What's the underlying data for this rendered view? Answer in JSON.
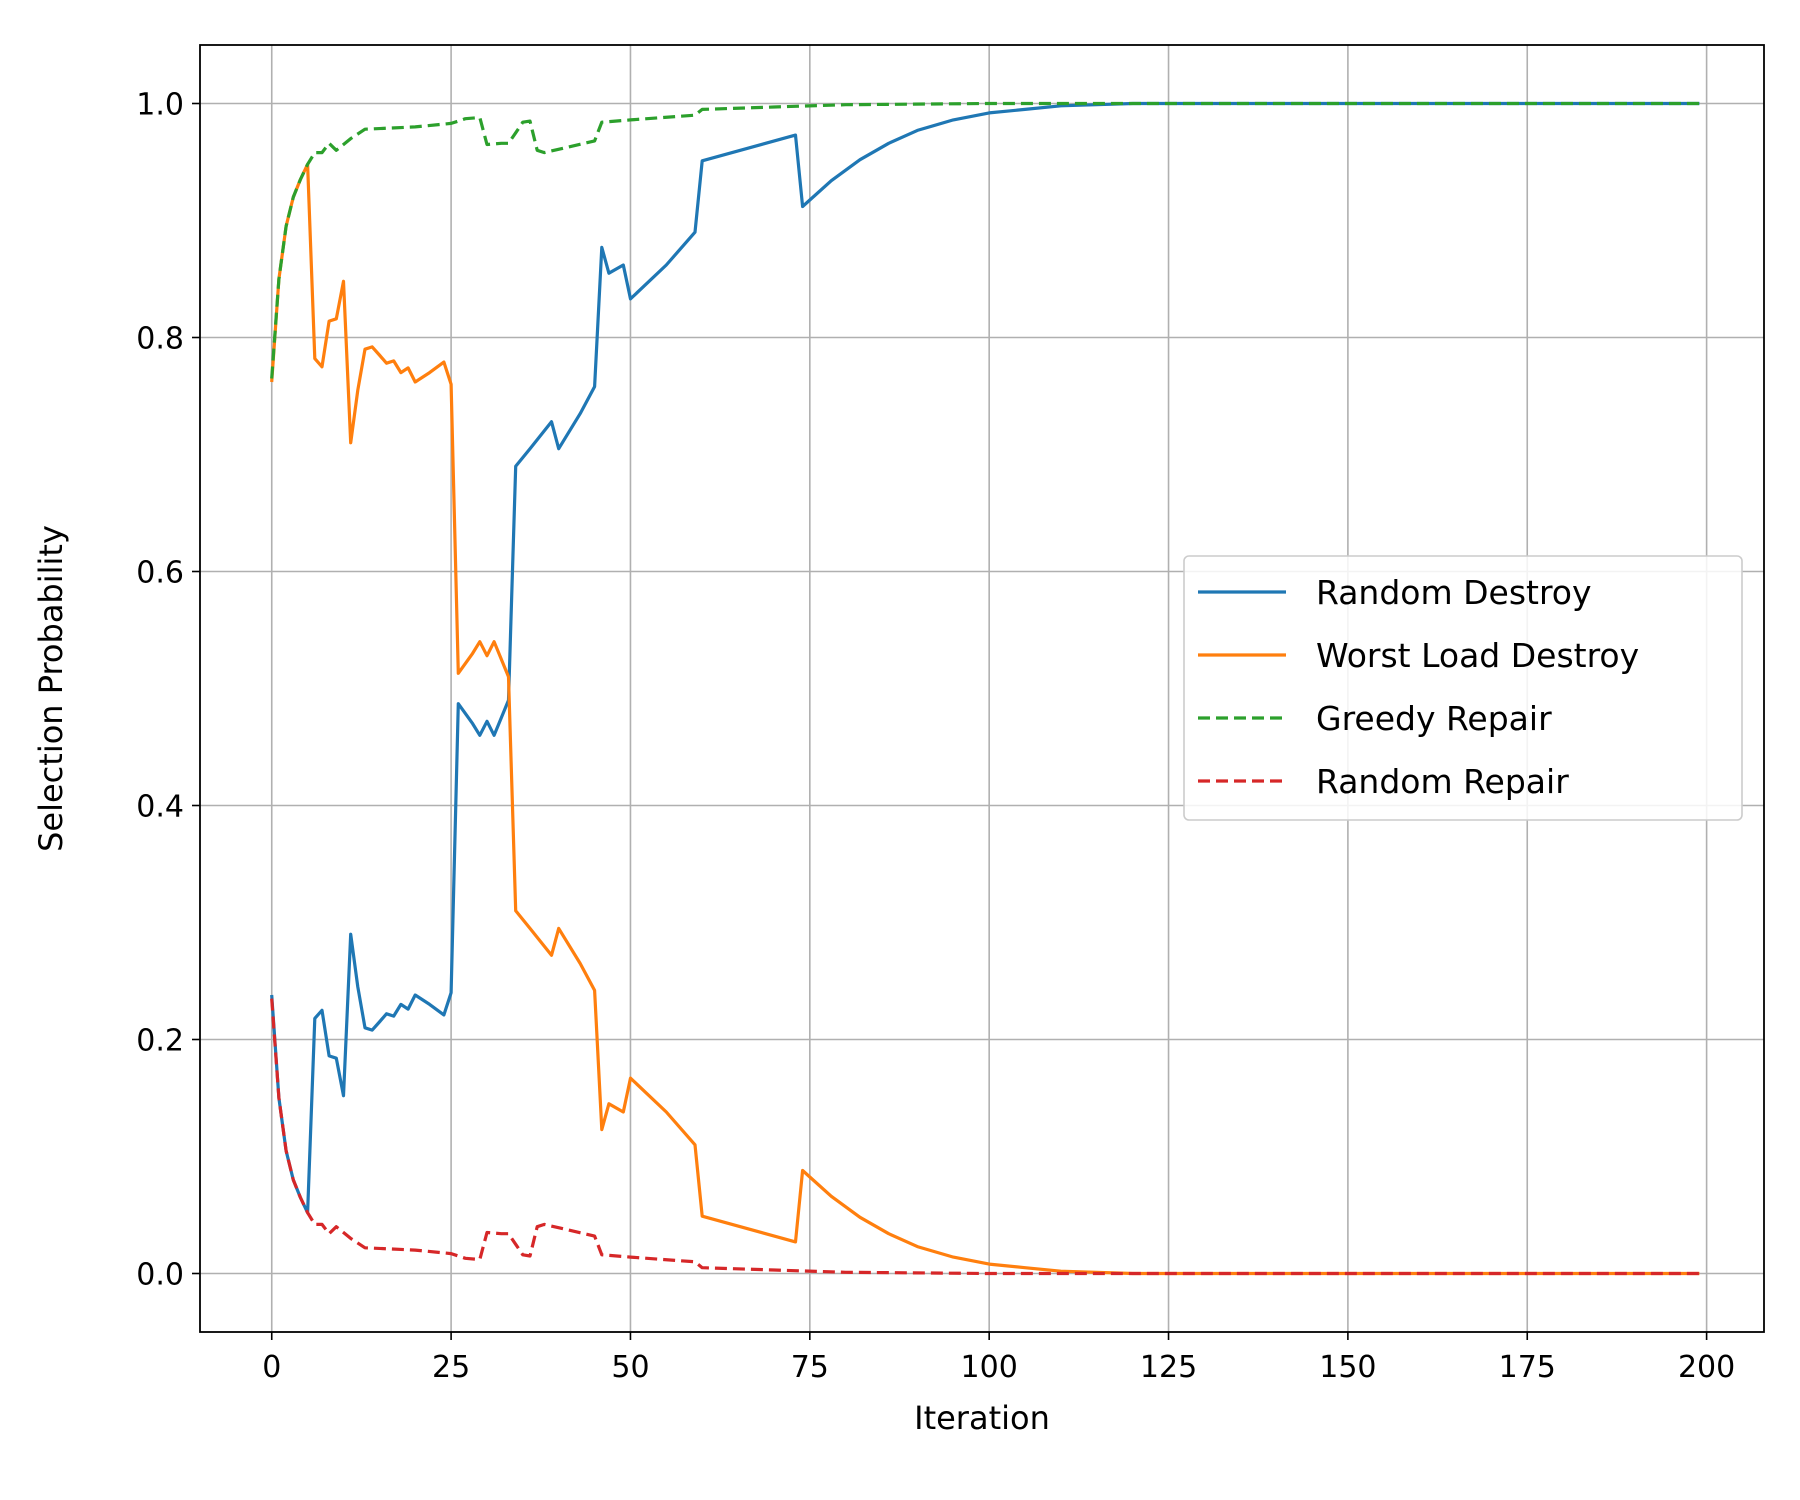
{
  "chart_data": {
    "type": "line",
    "title": "",
    "xlabel": "Iteration",
    "ylabel": "Selection Probability",
    "xlim": [
      -10,
      208
    ],
    "ylim": [
      -0.05,
      1.05
    ],
    "xticks": [
      0,
      25,
      50,
      75,
      100,
      125,
      150,
      175,
      200
    ],
    "yticks": [
      0.0,
      0.2,
      0.4,
      0.6,
      0.8,
      1.0
    ],
    "xtick_labels": [
      "0",
      "25",
      "50",
      "75",
      "100",
      "125",
      "150",
      "175",
      "200"
    ],
    "ytick_labels": [
      "0.0",
      "0.2",
      "0.4",
      "0.6",
      "0.8",
      "1.0"
    ],
    "grid": true,
    "legend_position": "center-right",
    "series": [
      {
        "name": "Random Destroy",
        "color": "#1f77b4",
        "dash": "solid",
        "points": [
          [
            0,
            0.238
          ],
          [
            1,
            0.15
          ],
          [
            2,
            0.105
          ],
          [
            3,
            0.08
          ],
          [
            4,
            0.065
          ],
          [
            5,
            0.052
          ],
          [
            6,
            0.218
          ],
          [
            7,
            0.225
          ],
          [
            8,
            0.186
          ],
          [
            9,
            0.184
          ],
          [
            10,
            0.152
          ],
          [
            11,
            0.29
          ],
          [
            12,
            0.245
          ],
          [
            13,
            0.21
          ],
          [
            14,
            0.208
          ],
          [
            15,
            0.215
          ],
          [
            16,
            0.222
          ],
          [
            17,
            0.22
          ],
          [
            18,
            0.23
          ],
          [
            19,
            0.226
          ],
          [
            20,
            0.238
          ],
          [
            22,
            0.23
          ],
          [
            24,
            0.221
          ],
          [
            25,
            0.24
          ],
          [
            26,
            0.487
          ],
          [
            28,
            0.47
          ],
          [
            29,
            0.46
          ],
          [
            30,
            0.472
          ],
          [
            31,
            0.46
          ],
          [
            33,
            0.49
          ],
          [
            34,
            0.69
          ],
          [
            36,
            0.705
          ],
          [
            39,
            0.728
          ],
          [
            40,
            0.705
          ],
          [
            43,
            0.735
          ],
          [
            45,
            0.758
          ],
          [
            46,
            0.877
          ],
          [
            47,
            0.855
          ],
          [
            49,
            0.862
          ],
          [
            50,
            0.833
          ],
          [
            55,
            0.862
          ],
          [
            59,
            0.89
          ],
          [
            60,
            0.951
          ],
          [
            73,
            0.973
          ],
          [
            74,
            0.912
          ],
          [
            78,
            0.934
          ],
          [
            82,
            0.952
          ],
          [
            86,
            0.966
          ],
          [
            90,
            0.977
          ],
          [
            95,
            0.986
          ],
          [
            100,
            0.992
          ],
          [
            105,
            0.995
          ],
          [
            110,
            0.998
          ],
          [
            115,
            0.999
          ],
          [
            120,
            1.0
          ],
          [
            199,
            1.0
          ]
        ]
      },
      {
        "name": "Worst Load Destroy",
        "color": "#ff7f0e",
        "dash": "solid",
        "points": [
          [
            0,
            0.762
          ],
          [
            1,
            0.85
          ],
          [
            2,
            0.895
          ],
          [
            3,
            0.92
          ],
          [
            4,
            0.935
          ],
          [
            5,
            0.948
          ],
          [
            6,
            0.782
          ],
          [
            7,
            0.775
          ],
          [
            8,
            0.814
          ],
          [
            9,
            0.816
          ],
          [
            10,
            0.848
          ],
          [
            11,
            0.71
          ],
          [
            12,
            0.755
          ],
          [
            13,
            0.79
          ],
          [
            14,
            0.792
          ],
          [
            15,
            0.785
          ],
          [
            16,
            0.778
          ],
          [
            17,
            0.78
          ],
          [
            18,
            0.77
          ],
          [
            19,
            0.774
          ],
          [
            20,
            0.762
          ],
          [
            22,
            0.77
          ],
          [
            24,
            0.779
          ],
          [
            25,
            0.76
          ],
          [
            26,
            0.513
          ],
          [
            28,
            0.53
          ],
          [
            29,
            0.54
          ],
          [
            30,
            0.528
          ],
          [
            31,
            0.54
          ],
          [
            33,
            0.51
          ],
          [
            34,
            0.31
          ],
          [
            36,
            0.295
          ],
          [
            39,
            0.272
          ],
          [
            40,
            0.295
          ],
          [
            43,
            0.265
          ],
          [
            45,
            0.242
          ],
          [
            46,
            0.123
          ],
          [
            47,
            0.145
          ],
          [
            49,
            0.138
          ],
          [
            50,
            0.167
          ],
          [
            55,
            0.138
          ],
          [
            59,
            0.11
          ],
          [
            60,
            0.049
          ],
          [
            73,
            0.027
          ],
          [
            74,
            0.088
          ],
          [
            78,
            0.066
          ],
          [
            82,
            0.048
          ],
          [
            86,
            0.034
          ],
          [
            90,
            0.023
          ],
          [
            95,
            0.014
          ],
          [
            100,
            0.008
          ],
          [
            105,
            0.005
          ],
          [
            110,
            0.002
          ],
          [
            115,
            0.001
          ],
          [
            120,
            0.0
          ],
          [
            199,
            0.0
          ]
        ]
      },
      {
        "name": "Greedy Repair",
        "color": "#2ca02c",
        "dash": "dashed",
        "points": [
          [
            0,
            0.765
          ],
          [
            1,
            0.85
          ],
          [
            2,
            0.895
          ],
          [
            3,
            0.92
          ],
          [
            4,
            0.935
          ],
          [
            5,
            0.948
          ],
          [
            6,
            0.958
          ],
          [
            7,
            0.958
          ],
          [
            8,
            0.966
          ],
          [
            9,
            0.96
          ],
          [
            10,
            0.965
          ],
          [
            11,
            0.97
          ],
          [
            13,
            0.978
          ],
          [
            20,
            0.98
          ],
          [
            25,
            0.983
          ],
          [
            26,
            0.985
          ],
          [
            27,
            0.987
          ],
          [
            29,
            0.988
          ],
          [
            30,
            0.965
          ],
          [
            32,
            0.966
          ],
          [
            33,
            0.966
          ],
          [
            34,
            0.975
          ],
          [
            35,
            0.984
          ],
          [
            36,
            0.985
          ],
          [
            37,
            0.96
          ],
          [
            38,
            0.958
          ],
          [
            45,
            0.968
          ],
          [
            46,
            0.984
          ],
          [
            50,
            0.986
          ],
          [
            59,
            0.99
          ],
          [
            60,
            0.995
          ],
          [
            70,
            0.997
          ],
          [
            80,
            0.999
          ],
          [
            100,
            1.0
          ],
          [
            199,
            1.0
          ]
        ]
      },
      {
        "name": "Random Repair",
        "color": "#d62728",
        "dash": "dashed",
        "points": [
          [
            0,
            0.235
          ],
          [
            1,
            0.15
          ],
          [
            2,
            0.105
          ],
          [
            3,
            0.08
          ],
          [
            4,
            0.065
          ],
          [
            5,
            0.052
          ],
          [
            6,
            0.042
          ],
          [
            7,
            0.042
          ],
          [
            8,
            0.034
          ],
          [
            9,
            0.04
          ],
          [
            10,
            0.035
          ],
          [
            11,
            0.03
          ],
          [
            13,
            0.022
          ],
          [
            20,
            0.02
          ],
          [
            25,
            0.017
          ],
          [
            26,
            0.015
          ],
          [
            27,
            0.013
          ],
          [
            29,
            0.012
          ],
          [
            30,
            0.035
          ],
          [
            32,
            0.034
          ],
          [
            33,
            0.034
          ],
          [
            34,
            0.025
          ],
          [
            35,
            0.016
          ],
          [
            36,
            0.015
          ],
          [
            37,
            0.04
          ],
          [
            38,
            0.042
          ],
          [
            45,
            0.032
          ],
          [
            46,
            0.016
          ],
          [
            50,
            0.014
          ],
          [
            59,
            0.01
          ],
          [
            60,
            0.005
          ],
          [
            70,
            0.003
          ],
          [
            80,
            0.001
          ],
          [
            100,
            0.0
          ],
          [
            199,
            0.0
          ]
        ]
      }
    ]
  }
}
